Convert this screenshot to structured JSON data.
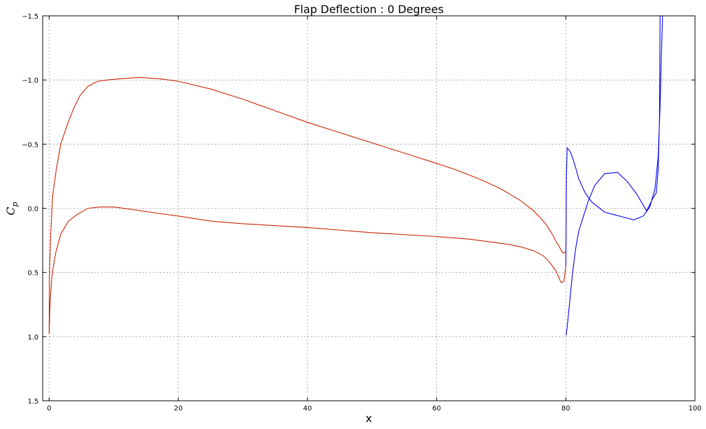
{
  "chart_data": {
    "type": "line",
    "title": "Flap Deflection : 0 Degrees",
    "xlabel": "x",
    "ylabel": "C",
    "ylabel_subscript": "p",
    "xlim": [
      -1,
      100
    ],
    "ylim": [
      1.5,
      -1.5
    ],
    "y_inverted": true,
    "grid": true,
    "x_ticks": [
      0,
      20,
      40,
      60,
      80,
      100
    ],
    "y_ticks": [
      -1.5,
      -1.0,
      -0.5,
      0.0,
      0.5,
      1.0,
      1.5
    ],
    "x_tick_labels": [
      "0",
      "20",
      "40",
      "60",
      "80",
      "100"
    ],
    "y_tick_labels": [
      "−1.5",
      "−1.0",
      "−0.5",
      "0.0",
      "0.5",
      "1.0",
      "1.5"
    ],
    "series": [
      {
        "color": "#cc2200",
        "x": [
          80.0,
          79.6,
          79.3,
          79.0,
          78.5,
          78.0,
          77.5,
          77.0,
          76.0,
          75.0,
          73.0,
          70.0,
          67.0,
          63.0,
          60.0,
          55.0,
          50.0,
          45.0,
          40.0,
          35.0,
          30.0,
          25.0,
          20.0,
          17.0,
          14.0,
          11.0,
          9.0,
          7.5,
          6.0,
          4.8,
          3.8,
          2.8,
          1.8,
          1.1,
          0.55,
          0.25,
          0.05,
          0.0,
          0.15,
          0.45,
          1.0,
          1.8,
          3.0,
          4.3,
          6.0,
          8.0,
          10.0,
          13.0,
          17.0,
          20.0,
          25.0,
          30.0,
          40.0,
          50.0,
          60.0,
          65.0,
          68.0,
          71.0,
          73.0,
          75.0,
          76.5,
          77.5,
          78.5,
          79.0,
          79.3,
          79.7,
          80.0
        ],
        "y": [
          0.34,
          0.35,
          0.33,
          0.3,
          0.26,
          0.21,
          0.17,
          0.13,
          0.07,
          0.02,
          -0.06,
          -0.15,
          -0.22,
          -0.3,
          -0.35,
          -0.43,
          -0.51,
          -0.59,
          -0.67,
          -0.76,
          -0.85,
          -0.93,
          -0.99,
          -1.01,
          -1.02,
          -1.01,
          -1.0,
          -0.99,
          -0.95,
          -0.88,
          -0.78,
          -0.65,
          -0.5,
          -0.3,
          -0.1,
          0.2,
          0.5,
          0.98,
          0.73,
          0.52,
          0.35,
          0.2,
          0.1,
          0.05,
          0.0,
          -0.01,
          -0.01,
          0.01,
          0.04,
          0.06,
          0.1,
          0.12,
          0.15,
          0.19,
          0.22,
          0.24,
          0.26,
          0.28,
          0.3,
          0.33,
          0.37,
          0.42,
          0.49,
          0.55,
          0.58,
          0.57,
          0.45
        ]
      },
      {
        "color": "#0000ee",
        "x": [
          80.0,
          80.1,
          80.2,
          80.4,
          80.7,
          81.0,
          81.5,
          82.0,
          83.0,
          84.0,
          85.0,
          86.0,
          87.5,
          89.0,
          90.5,
          92.0,
          93.0,
          93.8,
          94.3,
          94.6,
          94.8,
          94.95,
          95.0,
          94.9,
          94.8,
          94.7,
          94.6,
          94.5,
          94.3,
          94.0,
          93.5,
          92.5,
          91.0,
          89.5,
          88.0,
          86.0,
          84.5,
          83.5,
          82.8,
          82.0,
          81.5,
          81.0,
          80.6,
          80.3,
          80.15,
          80.05
        ],
        "y": [
          0.45,
          -0.25,
          -0.47,
          -0.46,
          -0.44,
          -0.4,
          -0.32,
          -0.23,
          -0.12,
          -0.05,
          -0.01,
          0.03,
          0.05,
          0.07,
          0.09,
          0.06,
          -0.01,
          -0.15,
          -0.4,
          -0.8,
          -1.2,
          -1.45,
          -1.6,
          -1.6,
          -1.6,
          -1.6,
          -1.55,
          -0.7,
          -0.3,
          -0.12,
          -0.08,
          0.02,
          -0.11,
          -0.21,
          -0.28,
          -0.27,
          -0.18,
          -0.06,
          0.05,
          0.18,
          0.32,
          0.52,
          0.73,
          0.88,
          0.95,
          0.99
        ]
      }
    ]
  }
}
